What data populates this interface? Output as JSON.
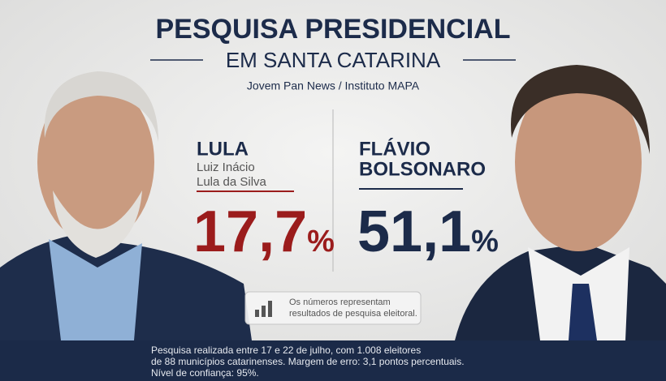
{
  "header": {
    "title": "PESQUISA PRESIDENCIAL",
    "subtitle": "EM SANTA CATARINA",
    "source": "Jovem Pan News / Instituto MAPA"
  },
  "candidates": [
    {
      "name_lines": [
        "LULA"
      ],
      "full_name_lines": [
        "Luiz Inácio",
        "Lula da Silva"
      ],
      "result": "17,7",
      "unit": "%"
    },
    {
      "name_lines": [
        "FLÁVIO",
        "BOLSONARO"
      ],
      "full_name_lines": [],
      "result": "51,1",
      "unit": "%"
    }
  ],
  "note": [
    "Os números representam",
    "resultados de pesquisa eleitoral."
  ],
  "footer": [
    "Pesquisa realizada entre 17 e 22 de julho, com 1.008 eleitores",
    "de 88 municípios catarinenses. Margem de erro: 3,1 pontos percentuais.",
    "Nível de confiança: 95%."
  ]
}
